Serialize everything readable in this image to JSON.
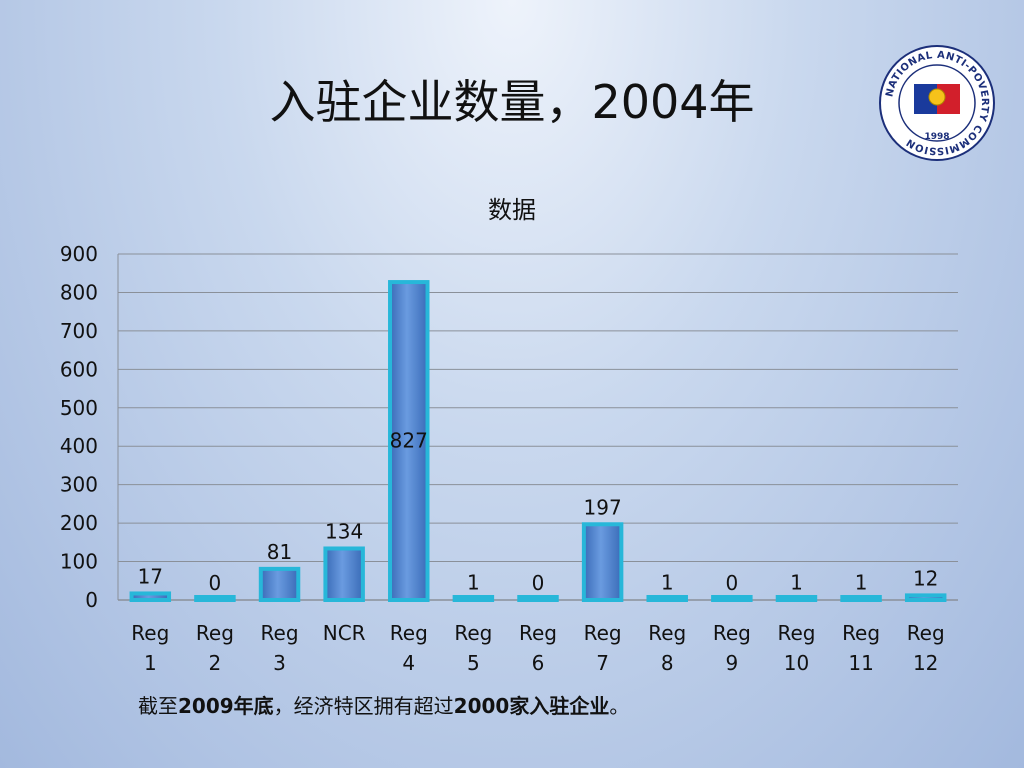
{
  "slide": {
    "title": "入驻企业数量，2004年",
    "logo_text": "NATIONAL ANTI-POVERTY COMMISSION",
    "logo_year": "1998",
    "footer_parts": [
      {
        "text": "截至",
        "bold": false
      },
      {
        "text": "2009年底",
        "bold": true
      },
      {
        "text": "，经济特区拥有超过",
        "bold": false
      },
      {
        "text": "2000家入驻企业",
        "bold": true
      },
      {
        "text": "。",
        "bold": false
      }
    ]
  },
  "colors": {
    "bar_fill_top": "#6a9be0",
    "bar_fill_bottom": "#3a6cb8",
    "bar_outline": "#27b7d9",
    "grid": "#8a9099",
    "text": "#111111"
  },
  "chart_data": {
    "type": "bar",
    "title": "数据",
    "categories": [
      "Reg 1",
      "Reg 2",
      "Reg 3",
      "NCR",
      "Reg 4",
      "Reg 5",
      "Reg 6",
      "Reg 7",
      "Reg 8",
      "Reg 9",
      "Reg 10",
      "Reg 11",
      "Reg 12"
    ],
    "category_lines": [
      [
        "Reg",
        "1"
      ],
      [
        "Reg",
        "2"
      ],
      [
        "Reg",
        "3"
      ],
      [
        "NCR",
        ""
      ],
      [
        "Reg",
        "4"
      ],
      [
        "Reg",
        "5"
      ],
      [
        "Reg",
        "6"
      ],
      [
        "Reg",
        "7"
      ],
      [
        "Reg",
        "8"
      ],
      [
        "Reg",
        "9"
      ],
      [
        "Reg",
        "10"
      ],
      [
        "Reg",
        "11"
      ],
      [
        "Reg",
        "12"
      ]
    ],
    "values": [
      17,
      0,
      81,
      134,
      827,
      1,
      0,
      197,
      1,
      0,
      1,
      1,
      12
    ],
    "data_labels": [
      "17",
      "0",
      "81",
      "134",
      "827",
      "1",
      "0",
      "197",
      "1",
      "0",
      "1",
      "1",
      "12"
    ],
    "ylim": [
      0,
      900
    ],
    "yticks": [
      0,
      100,
      200,
      300,
      400,
      500,
      600,
      700,
      800,
      900
    ],
    "grid": true,
    "legend": "none"
  }
}
